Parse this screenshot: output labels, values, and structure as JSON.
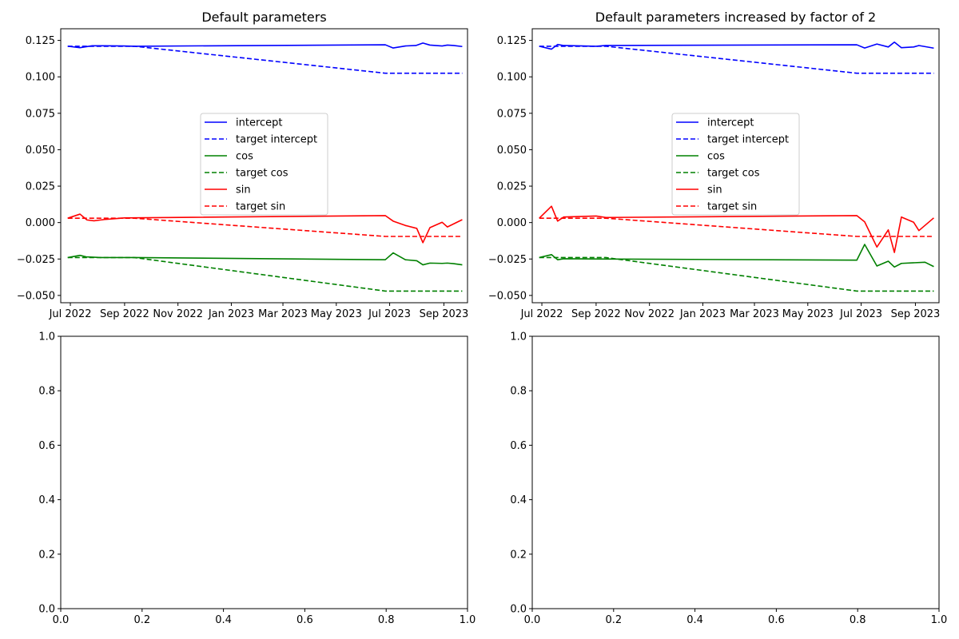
{
  "chart_data": [
    {
      "type": "line",
      "title": "Default parameters",
      "xlabel": "",
      "ylabel": "",
      "x_axis": "date",
      "xlim": [
        "2022-06-20",
        "2023-09-28"
      ],
      "ylim": [
        -0.055,
        0.133
      ],
      "xticks": [
        "2022-07-01",
        "2022-09-01",
        "2022-11-01",
        "2023-01-01",
        "2023-03-01",
        "2023-05-01",
        "2023-07-01",
        "2023-09-01"
      ],
      "xtick_labels": [
        "Jul 2022",
        "Sep 2022",
        "Nov 2022",
        "Jan 2023",
        "Mar 2023",
        "May 2023",
        "Jul 2023",
        "Sep 2023"
      ],
      "yticks": [
        -0.05,
        -0.025,
        0.0,
        0.025,
        0.05,
        0.075,
        0.1,
        0.125
      ],
      "ytick_labels": [
        "−0.050",
        "−0.025",
        "0.000",
        "0.025",
        "0.050",
        "0.075",
        "0.100",
        "0.125"
      ],
      "grid": false,
      "legend": {
        "placement": "center"
      },
      "series": [
        {
          "name": "intercept",
          "color": "#0000ff",
          "style": "solid",
          "x": [
            "2022-06-28",
            "2022-07-12",
            "2022-07-26",
            "2022-08-09",
            "2022-09-01",
            "2022-09-12",
            "2023-06-26",
            "2023-07-05",
            "2023-07-19",
            "2023-07-31",
            "2023-08-08",
            "2023-08-16",
            "2023-08-30",
            "2023-09-05",
            "2023-09-12",
            "2023-09-22"
          ],
          "y": [
            0.121,
            0.12,
            0.1213,
            0.1213,
            0.1212,
            0.121,
            0.122,
            0.1198,
            0.1212,
            0.1215,
            0.1232,
            0.1218,
            0.1212,
            0.1218,
            0.1215,
            0.1208
          ]
        },
        {
          "name": "target intercept",
          "color": "#0000ff",
          "style": "dashed",
          "x": [
            "2022-06-28",
            "2022-09-12",
            "2023-06-26",
            "2023-09-22"
          ],
          "y": [
            0.121,
            0.121,
            0.1025,
            0.1025
          ]
        },
        {
          "name": "cos",
          "color": "#008000",
          "style": "solid",
          "x": [
            "2022-06-28",
            "2022-07-12",
            "2022-07-19",
            "2022-08-05",
            "2022-09-12",
            "2023-06-26",
            "2023-07-05",
            "2023-07-19",
            "2023-08-01",
            "2023-08-08",
            "2023-08-16",
            "2023-08-30",
            "2023-09-05",
            "2023-09-12",
            "2023-09-22"
          ],
          "y": [
            -0.024,
            -0.0225,
            -0.0235,
            -0.024,
            -0.024,
            -0.0255,
            -0.0208,
            -0.0255,
            -0.0262,
            -0.029,
            -0.0278,
            -0.028,
            -0.0278,
            -0.0282,
            -0.029
          ]
        },
        {
          "name": "target cos",
          "color": "#008000",
          "style": "dashed",
          "x": [
            "2022-06-28",
            "2022-09-12",
            "2023-06-26",
            "2023-09-22"
          ],
          "y": [
            -0.024,
            -0.024,
            -0.047,
            -0.047
          ]
        },
        {
          "name": "sin",
          "color": "#ff0000",
          "style": "solid",
          "x": [
            "2022-06-28",
            "2022-07-12",
            "2022-07-20",
            "2022-07-28",
            "2022-08-10",
            "2022-09-01",
            "2023-06-26",
            "2023-07-05",
            "2023-07-19",
            "2023-08-01",
            "2023-08-08",
            "2023-08-16",
            "2023-08-30",
            "2023-09-05",
            "2023-09-22"
          ],
          "y": [
            0.003,
            0.0058,
            0.0018,
            0.0012,
            0.0022,
            0.0032,
            0.0048,
            0.001,
            -0.002,
            -0.004,
            -0.0138,
            -0.0035,
            0.0002,
            -0.003,
            0.002
          ]
        },
        {
          "name": "target sin",
          "color": "#ff0000",
          "style": "dashed",
          "x": [
            "2022-06-28",
            "2022-09-12",
            "2023-06-26",
            "2023-09-22"
          ],
          "y": [
            0.003,
            0.003,
            -0.0095,
            -0.0095
          ]
        }
      ]
    },
    {
      "type": "line",
      "title": "Default parameters increased by factor of 2",
      "xlabel": "",
      "ylabel": "",
      "x_axis": "date",
      "xlim": [
        "2022-06-20",
        "2023-09-28"
      ],
      "ylim": [
        -0.055,
        0.133
      ],
      "xticks": [
        "2022-07-01",
        "2022-09-01",
        "2022-11-01",
        "2023-01-01",
        "2023-03-01",
        "2023-05-01",
        "2023-07-01",
        "2023-09-01"
      ],
      "xtick_labels": [
        "Jul 2022",
        "Sep 2022",
        "Nov 2022",
        "Jan 2023",
        "Mar 2023",
        "May 2023",
        "Jul 2023",
        "Sep 2023"
      ],
      "yticks": [
        -0.05,
        -0.025,
        0.0,
        0.025,
        0.05,
        0.075,
        0.1,
        0.125
      ],
      "ytick_labels": [
        "−0.050",
        "−0.025",
        "0.000",
        "0.025",
        "0.050",
        "0.075",
        "0.100",
        "0.125"
      ],
      "grid": false,
      "legend": {
        "placement": "center"
      },
      "series": [
        {
          "name": "intercept",
          "color": "#0000ff",
          "style": "solid",
          "x": [
            "2022-06-28",
            "2022-07-12",
            "2022-07-19",
            "2022-07-26",
            "2022-09-01",
            "2022-09-12",
            "2023-06-26",
            "2023-07-05",
            "2023-07-19",
            "2023-08-01",
            "2023-08-08",
            "2023-08-16",
            "2023-08-30",
            "2023-09-05",
            "2023-09-22"
          ],
          "y": [
            0.121,
            0.119,
            0.1222,
            0.1215,
            0.121,
            0.1215,
            0.122,
            0.1198,
            0.1225,
            0.1205,
            0.1238,
            0.12,
            0.1205,
            0.1215,
            0.1197
          ]
        },
        {
          "name": "target intercept",
          "color": "#0000ff",
          "style": "dashed",
          "x": [
            "2022-06-28",
            "2022-09-12",
            "2023-06-26",
            "2023-09-22"
          ],
          "y": [
            0.121,
            0.121,
            0.1025,
            0.1025
          ]
        },
        {
          "name": "cos",
          "color": "#008000",
          "style": "solid",
          "x": [
            "2022-06-28",
            "2022-07-12",
            "2022-07-19",
            "2022-07-26",
            "2022-09-12",
            "2023-06-26",
            "2023-07-05",
            "2023-07-19",
            "2023-08-01",
            "2023-08-08",
            "2023-08-16",
            "2023-09-12",
            "2023-09-22"
          ],
          "y": [
            -0.024,
            -0.022,
            -0.0255,
            -0.0248,
            -0.025,
            -0.0258,
            -0.015,
            -0.0298,
            -0.0265,
            -0.0305,
            -0.028,
            -0.0272,
            -0.0302
          ]
        },
        {
          "name": "target cos",
          "color": "#008000",
          "style": "dashed",
          "x": [
            "2022-06-28",
            "2022-09-12",
            "2023-06-26",
            "2023-09-22"
          ],
          "y": [
            -0.024,
            -0.024,
            -0.047,
            -0.047
          ]
        },
        {
          "name": "sin",
          "color": "#ff0000",
          "style": "solid",
          "x": [
            "2022-06-28",
            "2022-07-12",
            "2022-07-19",
            "2022-07-26",
            "2022-09-01",
            "2022-09-12",
            "2023-06-26",
            "2023-07-05",
            "2023-07-19",
            "2023-08-01",
            "2023-08-08",
            "2023-08-16",
            "2023-08-30",
            "2023-09-05",
            "2023-09-22"
          ],
          "y": [
            0.003,
            0.0112,
            0.001,
            0.0038,
            0.0045,
            0.0035,
            0.0048,
            0.0005,
            -0.0168,
            -0.005,
            -0.0205,
            0.0038,
            0.0002,
            -0.0055,
            0.0032
          ]
        },
        {
          "name": "target sin",
          "color": "#ff0000",
          "style": "dashed",
          "x": [
            "2022-06-28",
            "2022-09-12",
            "2023-06-26",
            "2023-09-22"
          ],
          "y": [
            0.003,
            0.003,
            -0.0095,
            -0.0095
          ]
        }
      ]
    },
    {
      "type": "line",
      "title": "",
      "xlabel": "",
      "ylabel": "",
      "xlim": [
        0,
        1
      ],
      "ylim": [
        0,
        1
      ],
      "xticks": [
        0,
        0.2,
        0.4,
        0.6,
        0.8,
        1.0
      ],
      "xtick_labels": [
        "0.0",
        "0.2",
        "0.4",
        "0.6",
        "0.8",
        "1.0"
      ],
      "yticks": [
        0,
        0.2,
        0.4,
        0.6,
        0.8,
        1.0
      ],
      "ytick_labels": [
        "0.0",
        "0.2",
        "0.4",
        "0.6",
        "0.8",
        "1.0"
      ],
      "grid": false,
      "series": []
    },
    {
      "type": "line",
      "title": "",
      "xlabel": "",
      "ylabel": "",
      "xlim": [
        0,
        1
      ],
      "ylim": [
        0,
        1
      ],
      "xticks": [
        0,
        0.2,
        0.4,
        0.6,
        0.8,
        1.0
      ],
      "xtick_labels": [
        "0.0",
        "0.2",
        "0.4",
        "0.6",
        "0.8",
        "1.0"
      ],
      "yticks": [
        0,
        0.2,
        0.4,
        0.6,
        0.8,
        1.0
      ],
      "ytick_labels": [
        "0.0",
        "0.2",
        "0.4",
        "0.6",
        "0.8",
        "1.0"
      ],
      "grid": false,
      "series": []
    }
  ]
}
